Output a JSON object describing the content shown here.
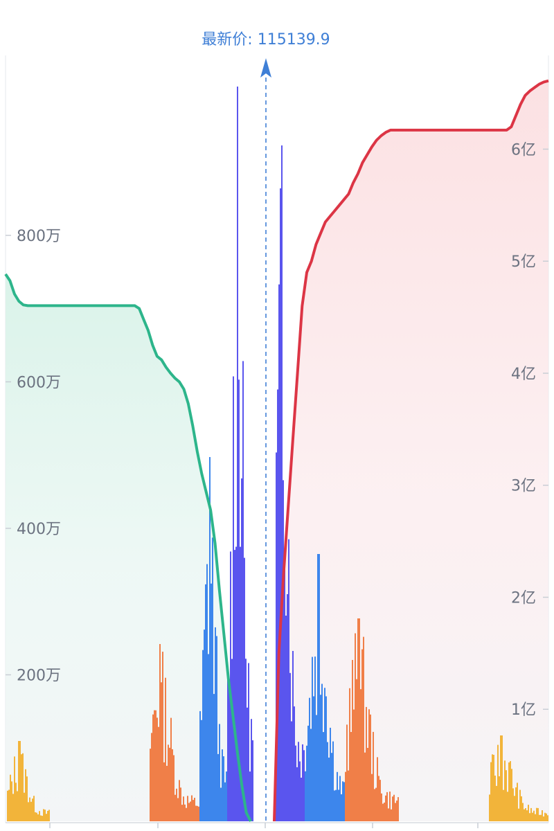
{
  "header": {
    "latest_price_label": "最新价: 115139.9"
  },
  "chart_data": {
    "type": "area",
    "center_price": 115139.9,
    "left_axis": {
      "ticks": [
        {
          "value": 2000000,
          "label": "200万"
        },
        {
          "value": 4000000,
          "label": "400万"
        },
        {
          "value": 6000000,
          "label": "600万"
        },
        {
          "value": 8000000,
          "label": "800万"
        }
      ],
      "range": [
        0,
        10400000
      ]
    },
    "right_axis": {
      "ticks": [
        {
          "value": 100000000,
          "label": "1亿"
        },
        {
          "value": 200000000,
          "label": "2亿"
        },
        {
          "value": 300000000,
          "label": "3亿"
        },
        {
          "value": 400000000,
          "label": "4亿"
        },
        {
          "value": 500000000,
          "label": "5亿"
        },
        {
          "value": 600000000,
          "label": "6亿"
        }
      ],
      "range": [
        0,
        680000000
      ]
    },
    "bid_depth": {
      "color": "#2db58b",
      "values": [
        7470000,
        7380000,
        7200000,
        7100000,
        7050000,
        7040000,
        7040000,
        7040000,
        7040000,
        7040000,
        7040000,
        7040000,
        7040000,
        7040000,
        7040000,
        7040000,
        7040000,
        7040000,
        7040000,
        7040000,
        7040000,
        7040000,
        7040000,
        7040000,
        7040000,
        7040000,
        7040000,
        7040000,
        7040000,
        7040000,
        7000000,
        6850000,
        6700000,
        6500000,
        6350000,
        6300000,
        6200000,
        6120000,
        6050000,
        6000000,
        5900000,
        5700000,
        5400000,
        5050000,
        4750000,
        4500000,
        4250000,
        3800000,
        3150000,
        2550000,
        1950000,
        1450000,
        950000,
        500000,
        120000,
        0
      ]
    },
    "ask_depth": {
      "color": "#dc3545",
      "values": [
        0,
        150000000,
        220000000,
        280000000,
        340000000,
        400000000,
        460000000,
        490000000,
        500000000,
        515000000,
        525000000,
        535000000,
        540000000,
        545000000,
        550000000,
        555000000,
        560000000,
        570000000,
        578000000,
        588000000,
        595000000,
        602000000,
        608000000,
        612000000,
        615000000,
        617000000,
        617000000,
        617000000,
        617000000,
        617000000,
        617000000,
        617000000,
        617000000,
        617000000,
        617000000,
        617000000,
        617000000,
        617000000,
        617000000,
        617000000,
        617000000,
        617000000,
        617000000,
        617000000,
        617000000,
        617000000,
        617000000,
        617000000,
        617000000,
        617000000,
        617000000,
        620000000,
        630000000,
        640000000,
        648000000,
        652000000,
        655000000,
        658000000,
        660000000,
        661000000
      ]
    },
    "volume_bars": [
      {
        "name": "yellow-left",
        "color": "#f2b43a",
        "peak": 0.26,
        "center": 0.28
      },
      {
        "name": "orange-left",
        "color": "#f07f48",
        "peak": 0.58,
        "center": 0.2
      },
      {
        "name": "blue-left",
        "color": "#3d86ec",
        "peak": 0.82,
        "center": 0.35
      },
      {
        "name": "purple-left",
        "color": "#5a55ee",
        "peak": 1.0,
        "center": 0.4
      },
      {
        "name": "purple-right",
        "color": "#5a55ee",
        "peak": 0.93,
        "center": 0.2
      },
      {
        "name": "blue-right",
        "color": "#3d86ec",
        "peak": 0.42,
        "center": 0.3
      },
      {
        "name": "orange-right",
        "color": "#f07f48",
        "peak": 0.49,
        "center": 0.25
      },
      {
        "name": "yellow-right",
        "color": "#f2b43a",
        "peak": 0.27,
        "center": 0.2
      }
    ]
  }
}
